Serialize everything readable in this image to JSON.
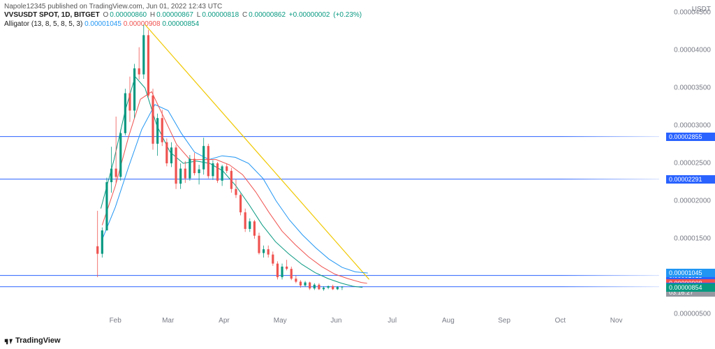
{
  "header": {
    "publisher": "Napole12345",
    "site": "TradingView.com",
    "date": "Jun 01, 2022 12:43 UTC"
  },
  "symbol": {
    "ticker": "VVSUSDT SPOT, 1D, BITGET",
    "o": "0.00000860",
    "h": "0.00000867",
    "l": "0.00000818",
    "c": "0.00000862",
    "chg": "+0.00000002",
    "chg_pct": "(+0.23%)",
    "color_ohlc": "#089981",
    "color_close": "#089981"
  },
  "indicator": {
    "name": "Alligator (13, 8, 5, 8, 5, 3)",
    "v1": "0.00001045",
    "c1": "#2196f3",
    "v2": "0.00000908",
    "c2": "#ef5350",
    "v3": "0.00000854",
    "c3": "#089981"
  },
  "footer": "TradingView",
  "yaxis": {
    "unit": "USDT",
    "min": 5e-06,
    "max": 4.5e-05,
    "ticks": [
      4.5e-05,
      4e-05,
      3.5e-05,
      3e-05,
      2.5e-05,
      2e-05,
      1.5e-05,
      5e-06
    ]
  },
  "xaxis": {
    "labels": [
      "Feb",
      "Mar",
      "Apr",
      "May",
      "Jun",
      "Jul",
      "Aug",
      "Sep",
      "Oct",
      "Nov"
    ],
    "positions": [
      0.175,
      0.255,
      0.34,
      0.425,
      0.51,
      0.595,
      0.68,
      0.765,
      0.85,
      0.935
    ]
  },
  "hlines": [
    {
      "v": 2.855e-05,
      "color": "#2962ff",
      "label": "0.00002855"
    },
    {
      "v": 2.291e-05,
      "color": "#2962ff",
      "label": "0.00002291"
    },
    {
      "v": 1.013e-05,
      "color": "#2962ff",
      "label": "0.00001013"
    },
    {
      "v": 8.63e-06,
      "color": "#2962ff",
      "label": "0.00000863"
    }
  ],
  "price_badges": [
    {
      "v": 1.045e-05,
      "bg": "#2196f3",
      "text": "0.00001045"
    },
    {
      "v": 9.08e-06,
      "bg": "#ef5350",
      "text": "0.00000908"
    },
    {
      "v": 8.62e-06,
      "bg": "#2962ff",
      "text": "0.00000862"
    },
    {
      "v": 7.9e-06,
      "bg": "#9598a1",
      "text": "03:16:27"
    },
    {
      "v": 8.54e-06,
      "bg": "#089981",
      "text": "0.00000854"
    }
  ],
  "yellow_line": {
    "x1": 0.22,
    "y1": 4.34e-05,
    "x2": 0.56,
    "y2": 9.6e-06,
    "color": "#f0c800",
    "width": 1.2
  },
  "alligator_jaw": {
    "color": "#2196f3",
    "pts": [
      [
        0.155,
        1.49e-05
      ],
      [
        0.175,
        1.92e-05
      ],
      [
        0.195,
        2.45e-05
      ],
      [
        0.215,
        2.95e-05
      ],
      [
        0.235,
        3.28e-05
      ],
      [
        0.255,
        3.2e-05
      ],
      [
        0.275,
        2.9e-05
      ],
      [
        0.295,
        2.65e-05
      ],
      [
        0.317,
        2.55e-05
      ],
      [
        0.337,
        2.6e-05
      ],
      [
        0.357,
        2.58e-05
      ],
      [
        0.377,
        2.5e-05
      ],
      [
        0.399,
        2.3e-05
      ],
      [
        0.419,
        2e-05
      ],
      [
        0.439,
        1.75e-05
      ],
      [
        0.459,
        1.55e-05
      ],
      [
        0.479,
        1.38e-05
      ],
      [
        0.499,
        1.23e-05
      ],
      [
        0.519,
        1.12e-05
      ],
      [
        0.539,
        1.06e-05
      ],
      [
        0.558,
        1.045e-05
      ]
    ]
  },
  "alligator_teeth": {
    "color": "#ef5350",
    "pts": [
      [
        0.155,
        1.68e-05
      ],
      [
        0.175,
        2.2e-05
      ],
      [
        0.195,
        2.85e-05
      ],
      [
        0.213,
        3.35e-05
      ],
      [
        0.23,
        3.45e-05
      ],
      [
        0.248,
        3.12e-05
      ],
      [
        0.268,
        2.75e-05
      ],
      [
        0.288,
        2.55e-05
      ],
      [
        0.308,
        2.55e-05
      ],
      [
        0.328,
        2.55e-05
      ],
      [
        0.348,
        2.48e-05
      ],
      [
        0.368,
        2.35e-05
      ],
      [
        0.388,
        2.12e-05
      ],
      [
        0.408,
        1.85e-05
      ],
      [
        0.428,
        1.6e-05
      ],
      [
        0.448,
        1.42e-05
      ],
      [
        0.468,
        1.26e-05
      ],
      [
        0.488,
        1.13e-05
      ],
      [
        0.508,
        1.03e-05
      ],
      [
        0.528,
        9.7e-06
      ],
      [
        0.548,
        9.2e-06
      ],
      [
        0.557,
        9.08e-06
      ]
    ]
  },
  "alligator_lips": {
    "color": "#089981",
    "pts": [
      [
        0.153,
        1.9e-05
      ],
      [
        0.173,
        2.55e-05
      ],
      [
        0.19,
        3.2e-05
      ],
      [
        0.205,
        3.65e-05
      ],
      [
        0.22,
        3.5e-05
      ],
      [
        0.238,
        3e-05
      ],
      [
        0.258,
        2.65e-05
      ],
      [
        0.278,
        2.5e-05
      ],
      [
        0.298,
        2.53e-05
      ],
      [
        0.318,
        2.5e-05
      ],
      [
        0.338,
        2.4e-05
      ],
      [
        0.358,
        2.2e-05
      ],
      [
        0.378,
        1.95e-05
      ],
      [
        0.398,
        1.68e-05
      ],
      [
        0.418,
        1.46e-05
      ],
      [
        0.438,
        1.3e-05
      ],
      [
        0.458,
        1.16e-05
      ],
      [
        0.478,
        1.05e-05
      ],
      [
        0.498,
        9.7e-06
      ],
      [
        0.518,
        9.1e-06
      ],
      [
        0.535,
        8.7e-06
      ],
      [
        0.55,
        8.54e-06
      ]
    ]
  },
  "candles": [
    {
      "x": 0.148,
      "o": 1.4e-05,
      "h": 1.87e-05,
      "l": 9.9e-06,
      "c": 1.3e-05,
      "col": "#ef5350"
    },
    {
      "x": 0.155,
      "o": 1.3e-05,
      "h": 1.65e-05,
      "l": 1.25e-05,
      "c": 1.61e-05,
      "col": "#089981"
    },
    {
      "x": 0.162,
      "o": 1.61e-05,
      "h": 2.31e-05,
      "l": 1.61e-05,
      "c": 2.25e-05,
      "col": "#089981"
    },
    {
      "x": 0.169,
      "o": 2.25e-05,
      "h": 2.72e-05,
      "l": 2.11e-05,
      "c": 2.43e-05,
      "col": "#089981"
    },
    {
      "x": 0.176,
      "o": 2.43e-05,
      "h": 3.12e-05,
      "l": 2.24e-05,
      "c": 2.32e-05,
      "col": "#ef5350"
    },
    {
      "x": 0.183,
      "o": 2.32e-05,
      "h": 2.95e-05,
      "l": 2.27e-05,
      "c": 2.9e-05,
      "col": "#089981"
    },
    {
      "x": 0.19,
      "o": 2.9e-05,
      "h": 3.49e-05,
      "l": 2.87e-05,
      "c": 3.43e-05,
      "col": "#089981"
    },
    {
      "x": 0.197,
      "o": 3.43e-05,
      "h": 3.65e-05,
      "l": 3.05e-05,
      "c": 3.2e-05,
      "col": "#ef5350"
    },
    {
      "x": 0.204,
      "o": 3.2e-05,
      "h": 3.82e-05,
      "l": 3.1e-05,
      "c": 3.76e-05,
      "col": "#089981"
    },
    {
      "x": 0.211,
      "o": 3.76e-05,
      "h": 4.04e-05,
      "l": 3.61e-05,
      "c": 3.68e-05,
      "col": "#ef5350"
    },
    {
      "x": 0.218,
      "o": 3.68e-05,
      "h": 4.34e-05,
      "l": 3.62e-05,
      "c": 4.2e-05,
      "col": "#089981"
    },
    {
      "x": 0.225,
      "o": 4.2e-05,
      "h": 4.27e-05,
      "l": 3.37e-05,
      "c": 3.4e-05,
      "col": "#ef5350"
    },
    {
      "x": 0.232,
      "o": 3.4e-05,
      "h": 3.49e-05,
      "l": 2.68e-05,
      "c": 2.76e-05,
      "col": "#ef5350"
    },
    {
      "x": 0.239,
      "o": 2.76e-05,
      "h": 3.16e-05,
      "l": 2.6e-05,
      "c": 3.1e-05,
      "col": "#089981"
    },
    {
      "x": 0.246,
      "o": 3.1e-05,
      "h": 3.21e-05,
      "l": 2.73e-05,
      "c": 2.78e-05,
      "col": "#ef5350"
    },
    {
      "x": 0.253,
      "o": 2.78e-05,
      "h": 2.83e-05,
      "l": 2.46e-05,
      "c": 2.5e-05,
      "col": "#ef5350"
    },
    {
      "x": 0.26,
      "o": 2.5e-05,
      "h": 2.78e-05,
      "l": 2.45e-05,
      "c": 2.71e-05,
      "col": "#089981"
    },
    {
      "x": 0.267,
      "o": 2.71e-05,
      "h": 2.74e-05,
      "l": 2.16e-05,
      "c": 2.23e-05,
      "col": "#ef5350"
    },
    {
      "x": 0.274,
      "o": 2.23e-05,
      "h": 2.5e-05,
      "l": 2.16e-05,
      "c": 2.43e-05,
      "col": "#089981"
    },
    {
      "x": 0.281,
      "o": 2.43e-05,
      "h": 2.53e-05,
      "l": 2.24e-05,
      "c": 2.3e-05,
      "col": "#ef5350"
    },
    {
      "x": 0.288,
      "o": 2.3e-05,
      "h": 2.61e-05,
      "l": 2.27e-05,
      "c": 2.56e-05,
      "col": "#089981"
    },
    {
      "x": 0.295,
      "o": 2.56e-05,
      "h": 2.64e-05,
      "l": 2.34e-05,
      "c": 2.37e-05,
      "col": "#ef5350"
    },
    {
      "x": 0.302,
      "o": 2.37e-05,
      "h": 2.48e-05,
      "l": 2.22e-05,
      "c": 2.42e-05,
      "col": "#089981"
    },
    {
      "x": 0.309,
      "o": 2.42e-05,
      "h": 2.84e-05,
      "l": 2.35e-05,
      "c": 2.73e-05,
      "col": "#089981"
    },
    {
      "x": 0.316,
      "o": 2.73e-05,
      "h": 2.76e-05,
      "l": 2.3e-05,
      "c": 2.33e-05,
      "col": "#ef5350"
    },
    {
      "x": 0.323,
      "o": 2.33e-05,
      "h": 2.54e-05,
      "l": 2.28e-05,
      "c": 2.5e-05,
      "col": "#089981"
    },
    {
      "x": 0.33,
      "o": 2.5e-05,
      "h": 2.52e-05,
      "l": 2.24e-05,
      "c": 2.27e-05,
      "col": "#ef5350"
    },
    {
      "x": 0.337,
      "o": 2.27e-05,
      "h": 2.48e-05,
      "l": 2.2e-05,
      "c": 2.46e-05,
      "col": "#089981"
    },
    {
      "x": 0.344,
      "o": 2.46e-05,
      "h": 2.5e-05,
      "l": 2.37e-05,
      "c": 2.4e-05,
      "col": "#ef5350"
    },
    {
      "x": 0.351,
      "o": 2.4e-05,
      "h": 2.44e-05,
      "l": 2.11e-05,
      "c": 2.16e-05,
      "col": "#ef5350"
    },
    {
      "x": 0.358,
      "o": 2.16e-05,
      "h": 2.29e-05,
      "l": 2.04e-05,
      "c": 2.08e-05,
      "col": "#ef5350"
    },
    {
      "x": 0.365,
      "o": 2.08e-05,
      "h": 2.1e-05,
      "l": 1.81e-05,
      "c": 1.85e-05,
      "col": "#ef5350"
    },
    {
      "x": 0.372,
      "o": 1.85e-05,
      "h": 1.9e-05,
      "l": 1.59e-05,
      "c": 1.63e-05,
      "col": "#ef5350"
    },
    {
      "x": 0.379,
      "o": 1.63e-05,
      "h": 1.77e-05,
      "l": 1.59e-05,
      "c": 1.73e-05,
      "col": "#089981"
    },
    {
      "x": 0.386,
      "o": 1.73e-05,
      "h": 1.75e-05,
      "l": 1.5e-05,
      "c": 1.54e-05,
      "col": "#ef5350"
    },
    {
      "x": 0.393,
      "o": 1.54e-05,
      "h": 1.58e-05,
      "l": 1.29e-05,
      "c": 1.31e-05,
      "col": "#ef5350"
    },
    {
      "x": 0.4,
      "o": 1.31e-05,
      "h": 1.41e-05,
      "l": 1.25e-05,
      "c": 1.36e-05,
      "col": "#089981"
    },
    {
      "x": 0.407,
      "o": 1.36e-05,
      "h": 1.41e-05,
      "l": 1.25e-05,
      "c": 1.29e-05,
      "col": "#ef5350"
    },
    {
      "x": 0.414,
      "o": 1.29e-05,
      "h": 1.33e-05,
      "l": 1.14e-05,
      "c": 1.17e-05,
      "col": "#ef5350"
    },
    {
      "x": 0.421,
      "o": 1.17e-05,
      "h": 1.2e-05,
      "l": 9.6e-06,
      "c": 9.9e-06,
      "col": "#ef5350"
    },
    {
      "x": 0.428,
      "o": 9.9e-06,
      "h": 1.17e-05,
      "l": 9.6e-06,
      "c": 1.13e-05,
      "col": "#089981"
    },
    {
      "x": 0.435,
      "o": 1.13e-05,
      "h": 1.22e-05,
      "l": 1.08e-05,
      "c": 1.1e-05,
      "col": "#ef5350"
    },
    {
      "x": 0.442,
      "o": 1.1e-05,
      "h": 1.13e-05,
      "l": 9.5e-06,
      "c": 9.7e-06,
      "col": "#ef5350"
    },
    {
      "x": 0.449,
      "o": 9.7e-06,
      "h": 1.01e-05,
      "l": 9.1e-06,
      "c": 9.3e-06,
      "col": "#ef5350"
    },
    {
      "x": 0.456,
      "o": 9.3e-06,
      "h": 9.5e-06,
      "l": 8.5e-06,
      "c": 8.8e-06,
      "col": "#ef5350"
    },
    {
      "x": 0.463,
      "o": 8.8e-06,
      "h": 9.4e-06,
      "l": 8.6e-06,
      "c": 9.2e-06,
      "col": "#089981"
    },
    {
      "x": 0.47,
      "o": 9.2e-06,
      "h": 9.3e-06,
      "l": 8.2e-06,
      "c": 8.4e-06,
      "col": "#ef5350"
    },
    {
      "x": 0.477,
      "o": 8.4e-06,
      "h": 9.1e-06,
      "l": 8.2e-06,
      "c": 8.9e-06,
      "col": "#089981"
    },
    {
      "x": 0.484,
      "o": 8.9e-06,
      "h": 9.1e-06,
      "l": 8.2e-06,
      "c": 8.3e-06,
      "col": "#ef5350"
    },
    {
      "x": 0.491,
      "o": 8.3e-06,
      "h": 8.7e-06,
      "l": 8.1e-06,
      "c": 8.5e-06,
      "col": "#089981"
    },
    {
      "x": 0.498,
      "o": 8.5e-06,
      "h": 8.8e-06,
      "l": 8.3e-06,
      "c": 8.7e-06,
      "col": "#089981"
    },
    {
      "x": 0.505,
      "o": 8.7e-06,
      "h": 8.9e-06,
      "l": 8.2e-06,
      "c": 8.3e-06,
      "col": "#ef5350"
    },
    {
      "x": 0.512,
      "o": 8.3e-06,
      "h": 8.7e-06,
      "l": 8.2e-06,
      "c": 8.6e-06,
      "col": "#089981"
    },
    {
      "x": 0.519,
      "o": 8.6e-06,
      "h": 8.7e-06,
      "l": 8.2e-06,
      "c": 8.62e-06,
      "col": "#089981"
    }
  ]
}
